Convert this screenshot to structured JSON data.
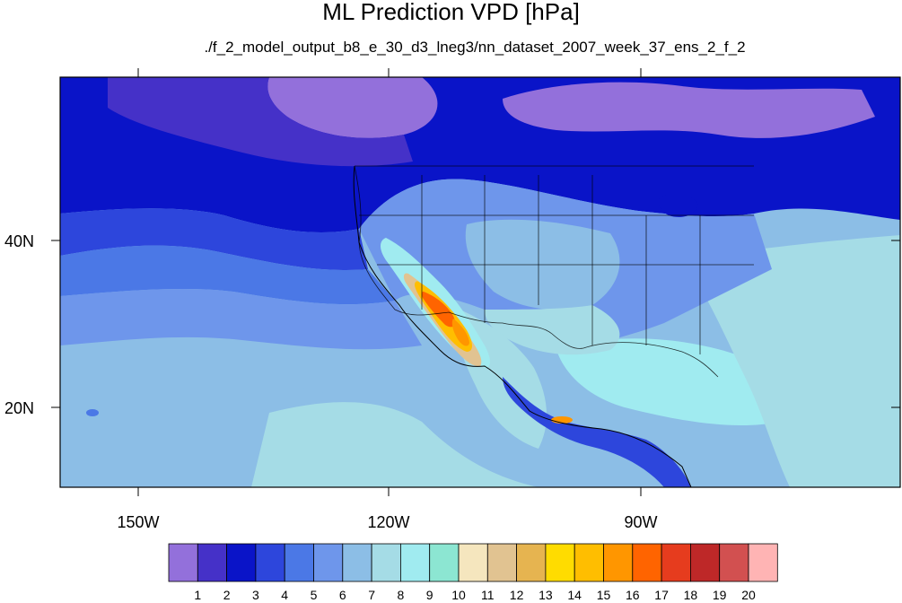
{
  "title": "ML Prediction VPD [hPa]",
  "subtitle": "./f_2_model_output_b8_e_30_d3_lneg3/nn_dataset_2007_week_37_ens_2_f_2",
  "axes": {
    "lon_ticks": [
      "150W",
      "120W",
      "90W"
    ],
    "lat_ticks": [
      "40N",
      "20N"
    ]
  },
  "colorbar": {
    "labels": [
      "1",
      "2",
      "3",
      "4",
      "5",
      "6",
      "7",
      "8",
      "9",
      "10",
      "11",
      "12",
      "13",
      "14",
      "15",
      "16",
      "17",
      "18",
      "19",
      "20"
    ],
    "colors": [
      "#9370db",
      "#4531c8",
      "#0a14c8",
      "#2d46dc",
      "#4b78e6",
      "#6e96eb",
      "#8cbee6",
      "#a5dce6",
      "#a0ebf0",
      "#8ce6d2",
      "#f5e6be",
      "#e1c391",
      "#e6b450",
      "#ffdc00",
      "#ffbe00",
      "#ff9600",
      "#ff6400",
      "#e63c1e",
      "#be2828",
      "#d25050",
      "#ffb4b4"
    ]
  },
  "colors": {
    "ocean_dark": "#0a14c8",
    "ocean_mid": "#2d46dc",
    "land_light": "#a5dce6",
    "hot_core": "#ff6400"
  }
}
